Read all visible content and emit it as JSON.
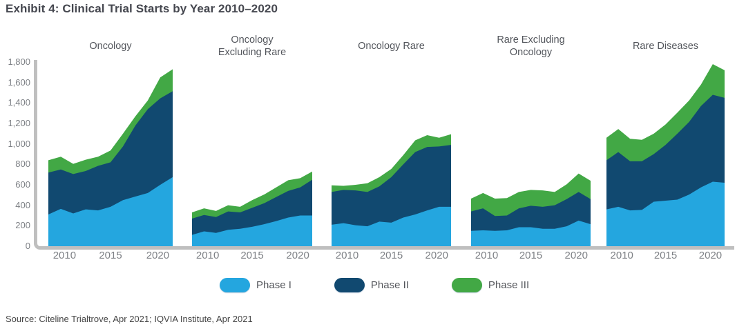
{
  "title": "Exhibit 4: Clinical Trial Starts by Year 2010–2020",
  "source": "Source: Citeline Trialtrove, Apr 2021; IQVIA Institute, Apr 2021",
  "colors": {
    "phase1": "#24A6DF",
    "phase2": "#114970",
    "phase3": "#42A845",
    "axis": "#BFBFBF"
  },
  "y_axis": {
    "ticks": [
      "1,800",
      "1,600",
      "1,400",
      "1,200",
      "1,000",
      "800",
      "600",
      "400",
      "200",
      "0"
    ],
    "min": 0,
    "max": 1800
  },
  "x_ticks": [
    "2010",
    "2015",
    "2020"
  ],
  "legend": [
    {
      "label": "Phase I",
      "color_key": "phase1"
    },
    {
      "label": "Phase II",
      "color_key": "phase2"
    },
    {
      "label": "Phase III",
      "color_key": "phase3"
    }
  ],
  "chart_data": [
    {
      "type": "area",
      "stacked": true,
      "title": "Oncology",
      "x": [
        2010,
        2011,
        2012,
        2013,
        2014,
        2015,
        2016,
        2017,
        2018,
        2019,
        2020
      ],
      "ylim": [
        0,
        1800
      ],
      "grid": false,
      "series": [
        {
          "name": "Phase I",
          "color_key": "phase1",
          "values": [
            310,
            365,
            320,
            360,
            350,
            385,
            450,
            485,
            520,
            600,
            675
          ]
        },
        {
          "name": "Phase II",
          "color_key": "phase2",
          "values": [
            410,
            385,
            385,
            375,
            435,
            435,
            525,
            695,
            820,
            845,
            840
          ]
        },
        {
          "name": "Phase III",
          "color_key": "phase3",
          "values": [
            120,
            125,
            100,
            110,
            90,
            115,
            125,
            90,
            85,
            205,
            215
          ]
        }
      ]
    },
    {
      "type": "area",
      "stacked": true,
      "title": "Oncology\nExcluding Rare",
      "x": [
        2010,
        2011,
        2012,
        2013,
        2014,
        2015,
        2016,
        2017,
        2018,
        2019,
        2020
      ],
      "ylim": [
        0,
        1800
      ],
      "grid": false,
      "series": [
        {
          "name": "Phase I",
          "color_key": "phase1",
          "values": [
            110,
            145,
            130,
            160,
            170,
            190,
            215,
            245,
            280,
            300,
            300
          ]
        },
        {
          "name": "Phase II",
          "color_key": "phase2",
          "values": [
            160,
            160,
            155,
            180,
            160,
            185,
            205,
            235,
            260,
            275,
            350
          ]
        },
        {
          "name": "Phase III",
          "color_key": "phase3",
          "values": [
            60,
            65,
            60,
            60,
            55,
            75,
            85,
            95,
            105,
            90,
            80
          ]
        }
      ]
    },
    {
      "type": "area",
      "stacked": true,
      "title": "Oncology Rare",
      "x": [
        2010,
        2011,
        2012,
        2013,
        2014,
        2015,
        2016,
        2017,
        2018,
        2019,
        2020
      ],
      "ylim": [
        0,
        1800
      ],
      "grid": false,
      "series": [
        {
          "name": "Phase I",
          "color_key": "phase1",
          "values": [
            210,
            225,
            205,
            195,
            240,
            230,
            280,
            310,
            350,
            385,
            385
          ]
        },
        {
          "name": "Phase II",
          "color_key": "phase2",
          "values": [
            320,
            325,
            340,
            335,
            345,
            445,
            520,
            610,
            620,
            590,
            605
          ]
        },
        {
          "name": "Phase III",
          "color_key": "phase3",
          "values": [
            65,
            40,
            55,
            85,
            90,
            80,
            90,
            115,
            115,
            85,
            105
          ]
        }
      ]
    },
    {
      "type": "area",
      "stacked": true,
      "title": "Rare Excluding\nOncology",
      "x": [
        2010,
        2011,
        2012,
        2013,
        2014,
        2015,
        2016,
        2017,
        2018,
        2019,
        2020
      ],
      "ylim": [
        0,
        1800
      ],
      "grid": false,
      "series": [
        {
          "name": "Phase I",
          "color_key": "phase1",
          "values": [
            150,
            155,
            150,
            155,
            185,
            185,
            170,
            170,
            195,
            250,
            215
          ]
        },
        {
          "name": "Phase II",
          "color_key": "phase2",
          "values": [
            190,
            215,
            145,
            145,
            185,
            210,
            215,
            230,
            265,
            280,
            245
          ]
        },
        {
          "name": "Phase III",
          "color_key": "phase3",
          "values": [
            125,
            150,
            170,
            170,
            160,
            155,
            160,
            130,
            145,
            180,
            180
          ]
        }
      ]
    },
    {
      "type": "area",
      "stacked": true,
      "title": "Rare Diseases",
      "x": [
        2010,
        2011,
        2012,
        2013,
        2014,
        2015,
        2016,
        2017,
        2018,
        2019,
        2020
      ],
      "ylim": [
        0,
        1800
      ],
      "grid": false,
      "series": [
        {
          "name": "Phase I",
          "color_key": "phase1",
          "values": [
            360,
            385,
            350,
            355,
            435,
            445,
            455,
            505,
            575,
            630,
            620
          ]
        },
        {
          "name": "Phase II",
          "color_key": "phase2",
          "values": [
            480,
            535,
            480,
            475,
            465,
            545,
            645,
            710,
            795,
            850,
            830
          ]
        },
        {
          "name": "Phase III",
          "color_key": "phase3",
          "values": [
            220,
            225,
            220,
            210,
            200,
            200,
            205,
            210,
            210,
            300,
            270
          ]
        }
      ]
    }
  ]
}
